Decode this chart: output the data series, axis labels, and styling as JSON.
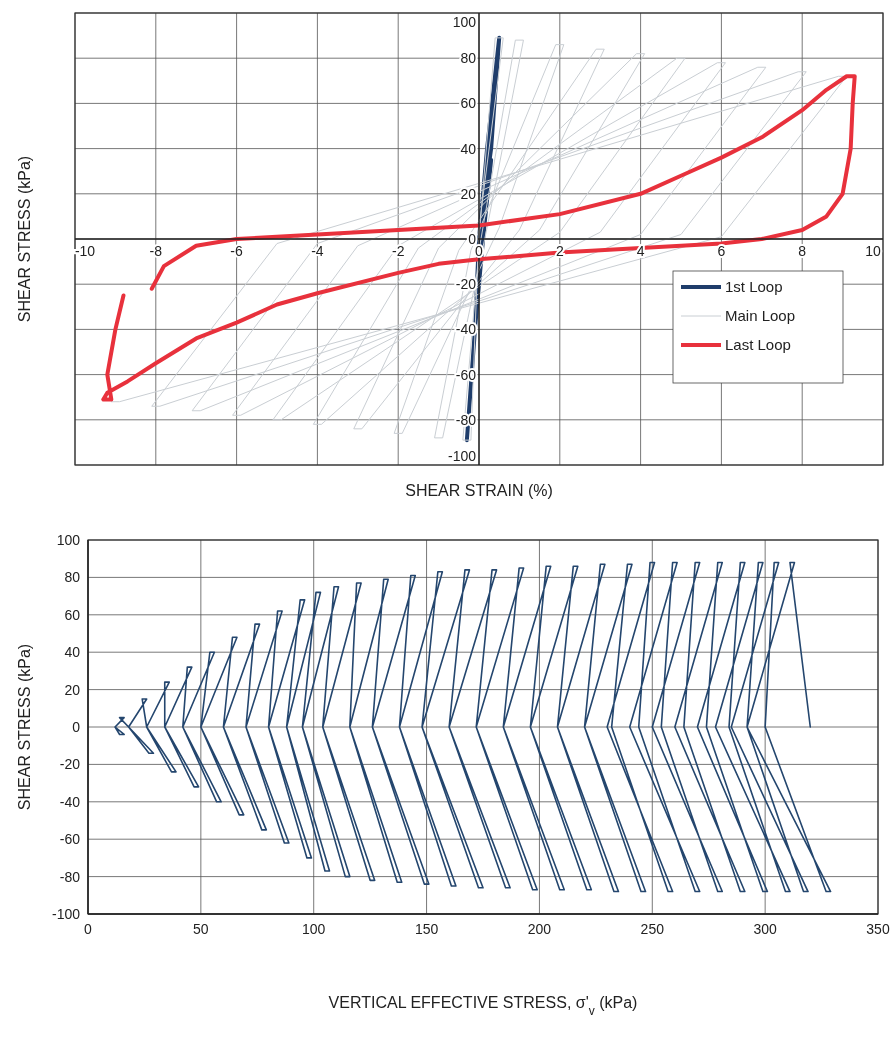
{
  "chart_data": [
    {
      "type": "line",
      "xlabel": "SHEAR STRAIN (%)",
      "ylabel": "SHEAR STRESS (kPa)",
      "xlim": [
        -10,
        10
      ],
      "ylim": [
        -100,
        100
      ],
      "xticks": [
        -10,
        -8,
        -6,
        -4,
        -2,
        0,
        2,
        4,
        6,
        8,
        10
      ],
      "yticks": [
        -100,
        -80,
        -60,
        -40,
        -20,
        0,
        20,
        40,
        60,
        80,
        100
      ],
      "grid": true,
      "legend": "bottom right",
      "series": [
        {
          "name": "1st Loop",
          "color": "#1f3d6b",
          "x": [
            0,
            0.2,
            0.5,
            0.3,
            0,
            -0.1,
            -0.3,
            -0.1,
            0.1,
            0.3
          ],
          "values": [
            0,
            40,
            89,
            40,
            0,
            -40,
            -89,
            -40,
            0,
            35
          ]
        },
        {
          "name": "Main Loop",
          "color": "#c9ced3",
          "x": [
            0,
            0.4,
            0.6,
            0,
            -0.2,
            -0.4,
            0,
            0.9,
            1.1,
            0.2,
            -0.9,
            -1.1,
            -0.2,
            1.9,
            2.1,
            0.5,
            -1.9,
            -2.1,
            -0.5,
            2.9,
            3.1,
            1,
            -2.9,
            -3.1,
            -1,
            3.9,
            4.1,
            1.5,
            -3.9,
            -4.1,
            -1.5,
            4.9,
            5.1,
            2,
            -4.9,
            -5.1,
            -2,
            5.9,
            6.1,
            3,
            -5.9,
            -6.1,
            -3,
            6.9,
            7.1,
            4,
            -6.9,
            -7.1,
            -4,
            7.9,
            8.1,
            5,
            -7.9,
            -8.1,
            -5,
            8.9,
            9.1,
            6,
            -8.9,
            -9.1
          ],
          "values": [
            0,
            89,
            89,
            5,
            -89,
            -89,
            -5,
            88,
            88,
            5,
            -88,
            -88,
            -5,
            86,
            86,
            5,
            -86,
            -86,
            -5,
            84,
            84,
            4,
            -84,
            -84,
            -4,
            82,
            82,
            4,
            -82,
            -82,
            -4,
            80,
            80,
            3,
            -80,
            -80,
            -3,
            78,
            78,
            3,
            -78,
            -78,
            -3,
            76,
            76,
            2,
            -76,
            -76,
            -2,
            74,
            74,
            2,
            -74,
            -74,
            -2,
            72,
            72,
            1,
            -72,
            -72
          ]
        },
        {
          "name": "Last Loop",
          "color": "#e8313c",
          "x": [
            -8.1,
            -7.8,
            -7,
            -6,
            -4,
            -2,
            0,
            2,
            4,
            5,
            6,
            7,
            8,
            8.6,
            9.1,
            9.3,
            9.25,
            9.2,
            9,
            8.6,
            8,
            7,
            6,
            4,
            2,
            0,
            -1,
            -2,
            -4,
            -5,
            -6,
            -7,
            -8,
            -8.7,
            -9.2,
            -9.3,
            -9.1,
            -9.2,
            -9,
            -8.8
          ],
          "values": [
            -22,
            -12,
            -3,
            0,
            2,
            4,
            6,
            11,
            20,
            28,
            36,
            45,
            57,
            66,
            72,
            72,
            60,
            40,
            20,
            10,
            4,
            0,
            -2,
            -4,
            -6,
            -9,
            -11,
            -15,
            -24,
            -29,
            -37,
            -44,
            -55,
            -63,
            -68,
            -71,
            -71,
            -60,
            -40,
            -25
          ]
        }
      ]
    },
    {
      "type": "line",
      "xlabel": "VERTICAL EFFECTIVE STRESS, σ'$_{v}$ (kPa)",
      "ylabel": "SHEAR STRESS (kPa)",
      "xlim": [
        0,
        350
      ],
      "ylim": [
        -100,
        100
      ],
      "xticks": [
        0,
        50,
        100,
        150,
        200,
        250,
        300,
        350
      ],
      "yticks": [
        -100,
        -80,
        -60,
        -40,
        -20,
        0,
        20,
        40,
        60,
        80,
        100
      ],
      "grid": true,
      "series": [
        {
          "color": "#24466e",
          "x": [
            320,
            311,
            313,
            292,
            329,
            327,
            300,
            304,
            306,
            285,
            319,
            317,
            292,
            297,
            299,
            278,
            311,
            309,
            284,
            289,
            291,
            270,
            301,
            299,
            274,
            279,
            281,
            260,
            291,
            289,
            264,
            269,
            271,
            250,
            281,
            279,
            254,
            259,
            261,
            240,
            271,
            269,
            244,
            249,
            251,
            230,
            259,
            257,
            232,
            239,
            241,
            220,
            247,
            245,
            220,
            227,
            229,
            208,
            235,
            233,
            208,
            215,
            217,
            196,
            223,
            221,
            196,
            203,
            205,
            184,
            211,
            209,
            184,
            191,
            193,
            172,
            199,
            197,
            172,
            179,
            181,
            160,
            187,
            185,
            160,
            167,
            169,
            148,
            175,
            173,
            148,
            155,
            157,
            138,
            163,
            161,
            138,
            143,
            145,
            126,
            151,
            149,
            126,
            131,
            133,
            116,
            139,
            137,
            116,
            119,
            121,
            104,
            127,
            125,
            104,
            109,
            111,
            95,
            116,
            114,
            95,
            101,
            103,
            88,
            107,
            105,
            88,
            94,
            96,
            80,
            99,
            97,
            80,
            84,
            86,
            70,
            89,
            87,
            70,
            74,
            76,
            60,
            79,
            77,
            60,
            64,
            66,
            50,
            69,
            67,
            50,
            54,
            56,
            42,
            59,
            57,
            42,
            44,
            46,
            34,
            49,
            47,
            34,
            34,
            36,
            26,
            39,
            37,
            26,
            24,
            26,
            18,
            29,
            27,
            18,
            14,
            16,
            12,
            16,
            14,
            12
          ],
          "values": [
            0,
            88,
            88,
            0,
            -88,
            -88,
            0,
            88,
            88,
            0,
            -88,
            -88,
            0,
            88,
            88,
            0,
            -88,
            -88,
            0,
            88,
            88,
            0,
            -88,
            -88,
            0,
            88,
            88,
            0,
            -88,
            -88,
            0,
            88,
            88,
            0,
            -88,
            -88,
            0,
            88,
            88,
            0,
            -88,
            -88,
            0,
            88,
            88,
            0,
            -88,
            -88,
            0,
            87,
            87,
            0,
            -88,
            -88,
            0,
            87,
            87,
            0,
            -88,
            -88,
            0,
            86,
            86,
            0,
            -87,
            -87,
            0,
            86,
            86,
            0,
            -87,
            -87,
            0,
            85,
            85,
            0,
            -87,
            -87,
            0,
            84,
            84,
            0,
            -86,
            -86,
            0,
            84,
            84,
            0,
            -86,
            -86,
            0,
            83,
            83,
            0,
            -85,
            -85,
            0,
            81,
            81,
            0,
            -84,
            -84,
            0,
            79,
            79,
            0,
            -83,
            -83,
            0,
            77,
            77,
            0,
            -82,
            -82,
            0,
            75,
            75,
            0,
            -80,
            -80,
            0,
            72,
            72,
            0,
            -77,
            -77,
            0,
            68,
            68,
            0,
            -70,
            -70,
            0,
            62,
            62,
            0,
            -62,
            -62,
            0,
            55,
            55,
            0,
            -55,
            -55,
            0,
            48,
            48,
            0,
            -47,
            -47,
            0,
            40,
            40,
            0,
            -40,
            -40,
            0,
            32,
            32,
            0,
            -32,
            -32,
            0,
            24,
            24,
            0,
            -24,
            -24,
            0,
            15,
            15,
            0,
            -14,
            -14,
            0,
            5,
            5,
            0,
            -4,
            -4,
            0
          ]
        }
      ]
    }
  ]
}
